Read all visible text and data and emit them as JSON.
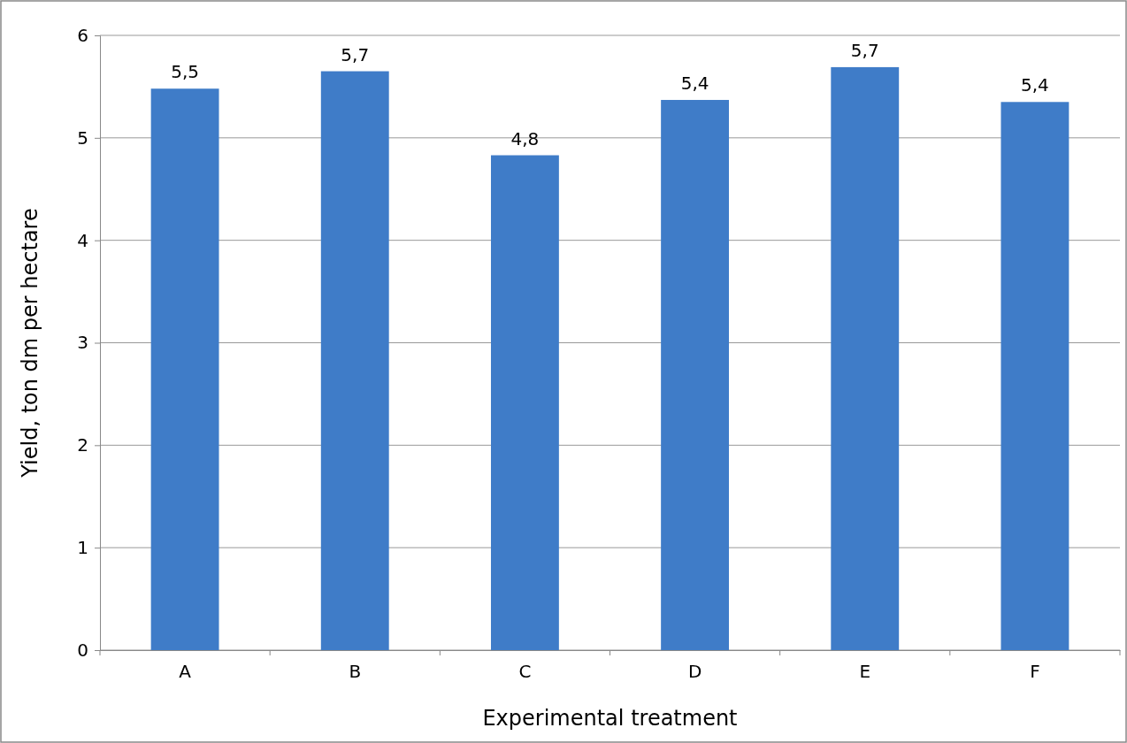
{
  "chart_data": {
    "type": "bar",
    "xlabel": "Experimental treatment",
    "ylabel": "Yield, ton dm per hectare",
    "categories": [
      "A",
      "B",
      "C",
      "D",
      "E",
      "F"
    ],
    "values": [
      5.48,
      5.65,
      4.83,
      5.37,
      5.69,
      5.35
    ],
    "value_labels": [
      "5,5",
      "5,7",
      "4,8",
      "5,4",
      "5,7",
      "5,4"
    ],
    "color": "#3f7cc8",
    "ylim": [
      0,
      6
    ],
    "yticks": [
      0,
      1,
      2,
      3,
      4,
      5,
      6
    ],
    "grid": "y"
  }
}
